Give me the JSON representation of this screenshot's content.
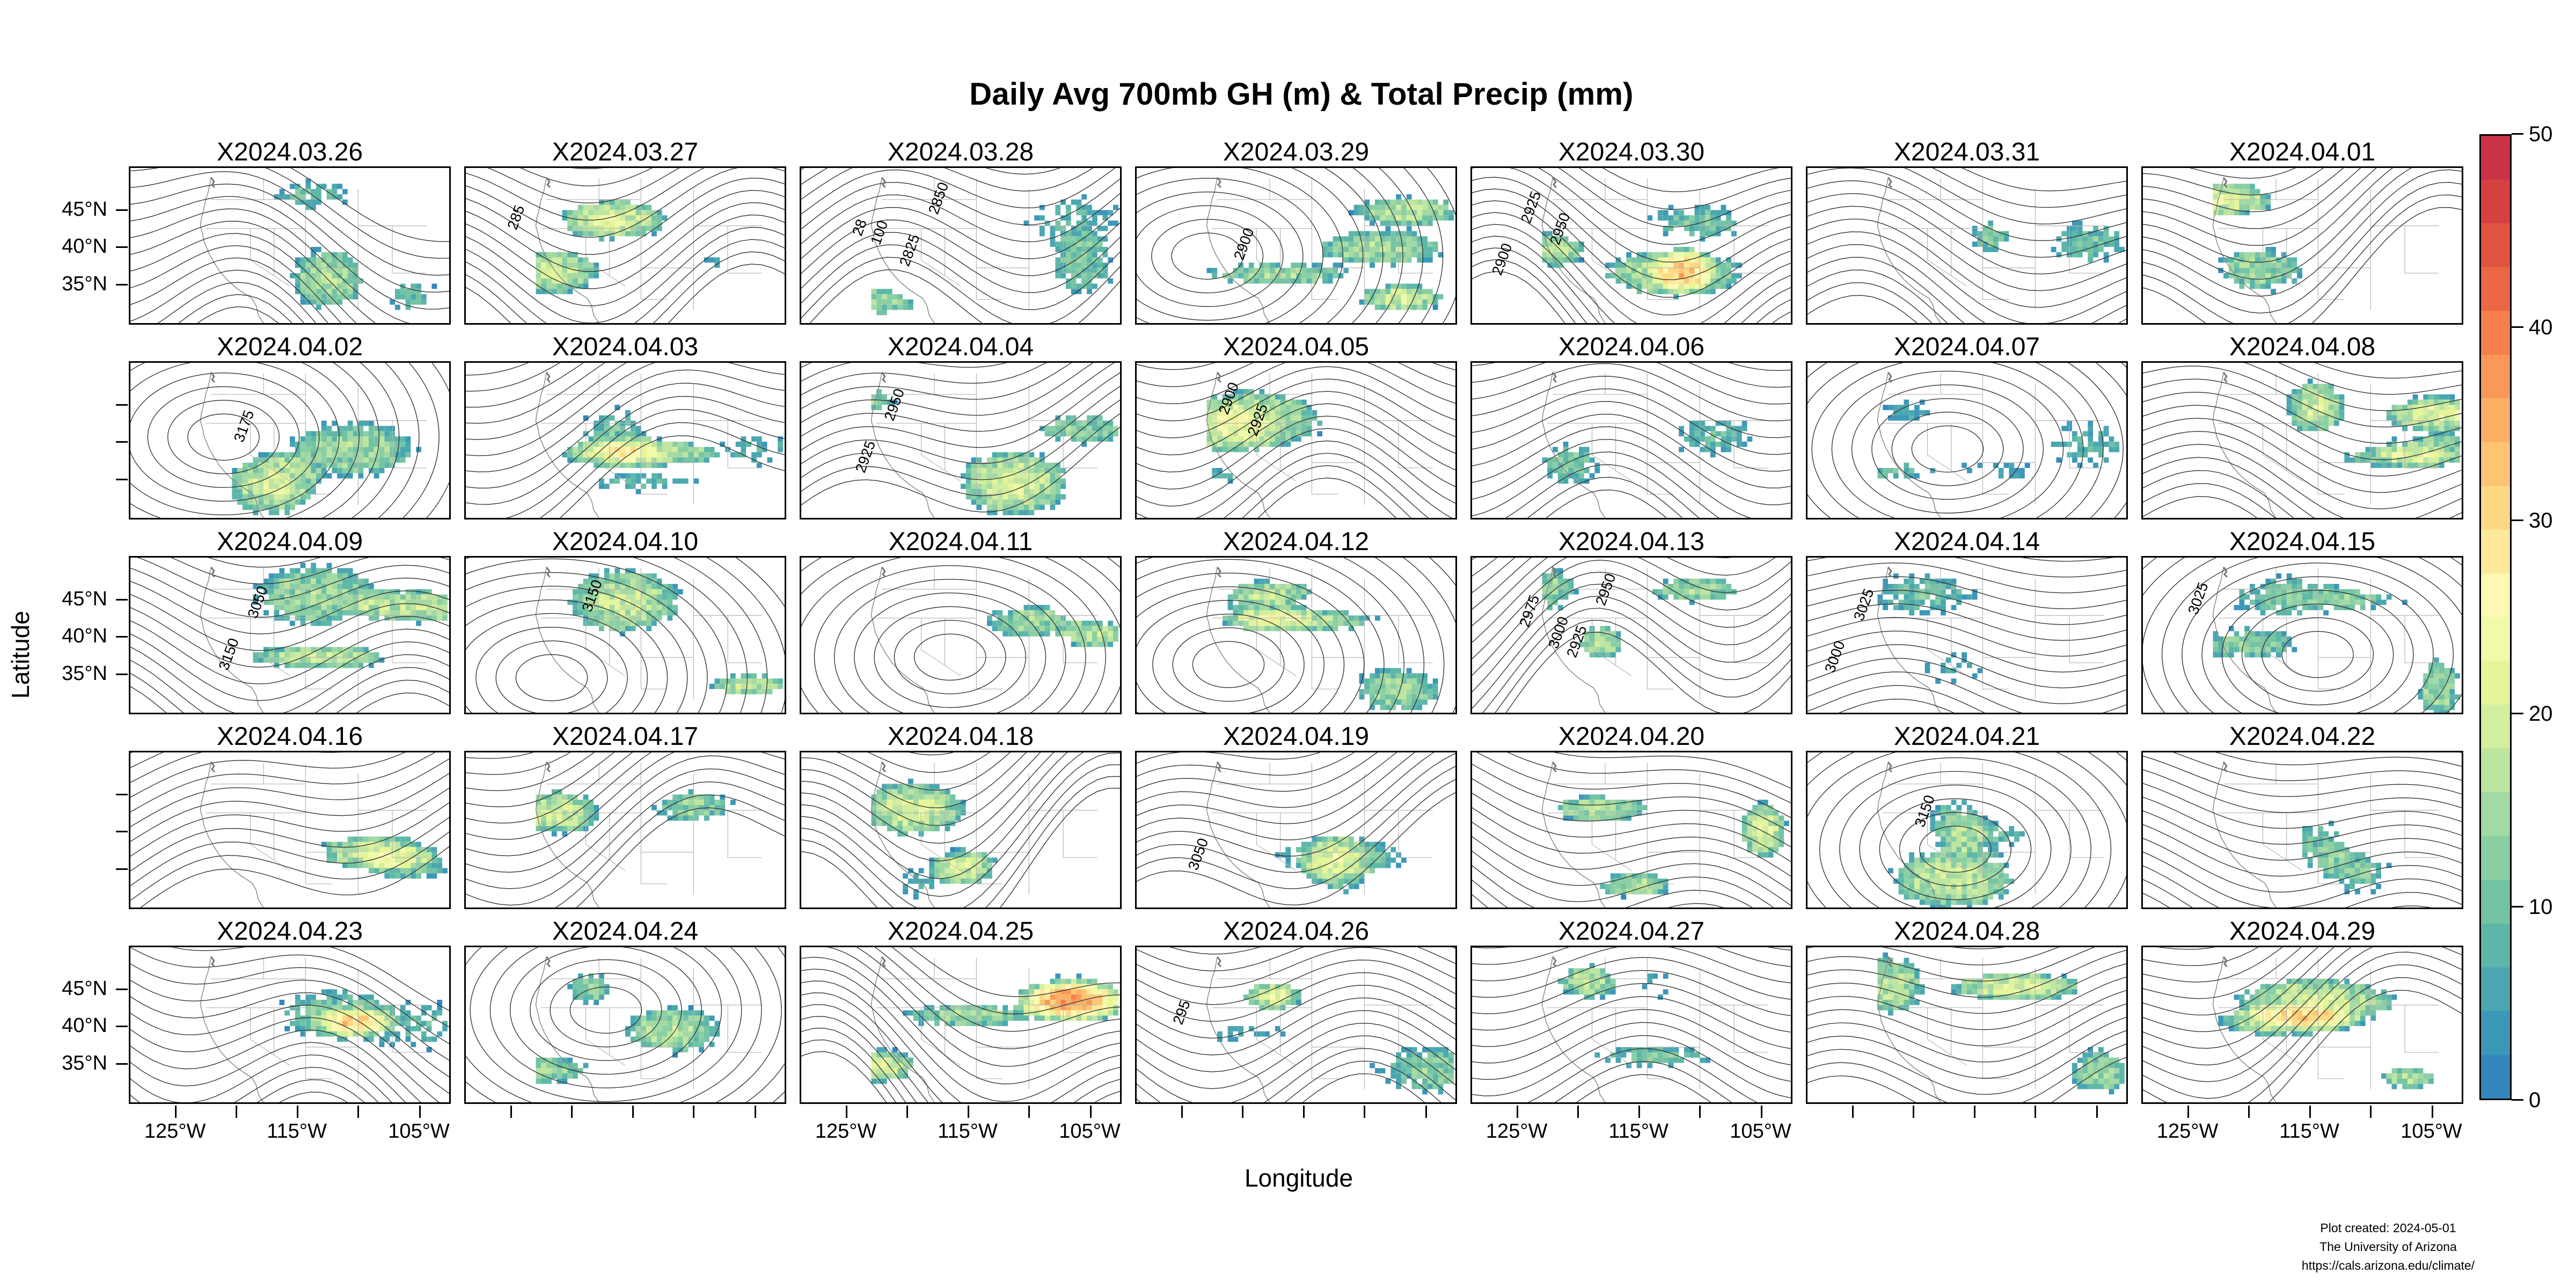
{
  "figure": {
    "title": "Daily Avg 700mb GH (m) & Total Precip (mm)",
    "xlabel": "Longitude",
    "ylabel": "Latitude",
    "panels": [
      "X2024.03.26",
      "X2024.03.27",
      "X2024.03.28",
      "X2024.03.29",
      "X2024.03.30",
      "X2024.03.31",
      "X2024.04.01",
      "X2024.04.02",
      "X2024.04.03",
      "X2024.04.04",
      "X2024.04.05",
      "X2024.04.06",
      "X2024.04.07",
      "X2024.04.08",
      "X2024.04.09",
      "X2024.04.10",
      "X2024.04.11",
      "X2024.04.12",
      "X2024.04.13",
      "X2024.04.14",
      "X2024.04.15",
      "X2024.04.16",
      "X2024.04.17",
      "X2024.04.18",
      "X2024.04.19",
      "X2024.04.20",
      "X2024.04.21",
      "X2024.04.22",
      "X2024.04.23",
      "X2024.04.24",
      "X2024.04.25",
      "X2024.04.26",
      "X2024.04.27",
      "X2024.04.28",
      "X2024.04.29"
    ],
    "lat_labels": [
      "45°N",
      "40°N",
      "35°N"
    ],
    "lon_labels": [
      "125°W",
      "115°W",
      "105°W"
    ],
    "colorbar": {
      "labels": [
        "0",
        "10",
        "20",
        "30",
        "40",
        "50"
      ],
      "colors": [
        "#3288bd",
        "#3c98b8",
        "#4aa7b1",
        "#5db7a9",
        "#73c3a4",
        "#8acfa4",
        "#a3d9a3",
        "#bde5a0",
        "#d3ee9e",
        "#e6f598",
        "#f2f9a9",
        "#fbf9b4",
        "#fee99a",
        "#fed883",
        "#fdc473",
        "#fdb063",
        "#fa9857",
        "#f67f4b",
        "#ec6745",
        "#e0543f",
        "#d5413f",
        "#c93347"
      ]
    },
    "contour_labels": [
      {
        "panel": 1,
        "text": "285"
      },
      {
        "panel": 2,
        "text": "100"
      },
      {
        "panel": 2,
        "text": "2825"
      },
      {
        "panel": 2,
        "text": "2850"
      },
      {
        "panel": 2,
        "text": "28"
      },
      {
        "panel": 3,
        "text": "2900"
      },
      {
        "panel": 4,
        "text": "2900"
      },
      {
        "panel": 4,
        "text": "2925"
      },
      {
        "panel": 4,
        "text": "2950"
      },
      {
        "panel": 7,
        "text": "3175"
      },
      {
        "panel": 9,
        "text": "2925"
      },
      {
        "panel": 9,
        "text": "2950"
      },
      {
        "panel": 10,
        "text": "2900"
      },
      {
        "panel": 10,
        "text": "2925"
      },
      {
        "panel": 14,
        "text": "3150"
      },
      {
        "panel": 14,
        "text": "3050"
      },
      {
        "panel": 15,
        "text": "3150"
      },
      {
        "panel": 18,
        "text": "2925"
      },
      {
        "panel": 18,
        "text": "2950"
      },
      {
        "panel": 18,
        "text": "2975"
      },
      {
        "panel": 18,
        "text": "3000"
      },
      {
        "panel": 19,
        "text": "3000"
      },
      {
        "panel": 19,
        "text": "3025"
      },
      {
        "panel": 20,
        "text": "3025"
      },
      {
        "panel": 24,
        "text": "3050"
      },
      {
        "panel": 26,
        "text": "3150"
      },
      {
        "panel": 31,
        "text": "295"
      }
    ],
    "credit": {
      "line1": "Plot created: 2024-05-01",
      "line2": "The University of Arizona",
      "line3": "https://cals.arizona.edu/climate/"
    }
  }
}
